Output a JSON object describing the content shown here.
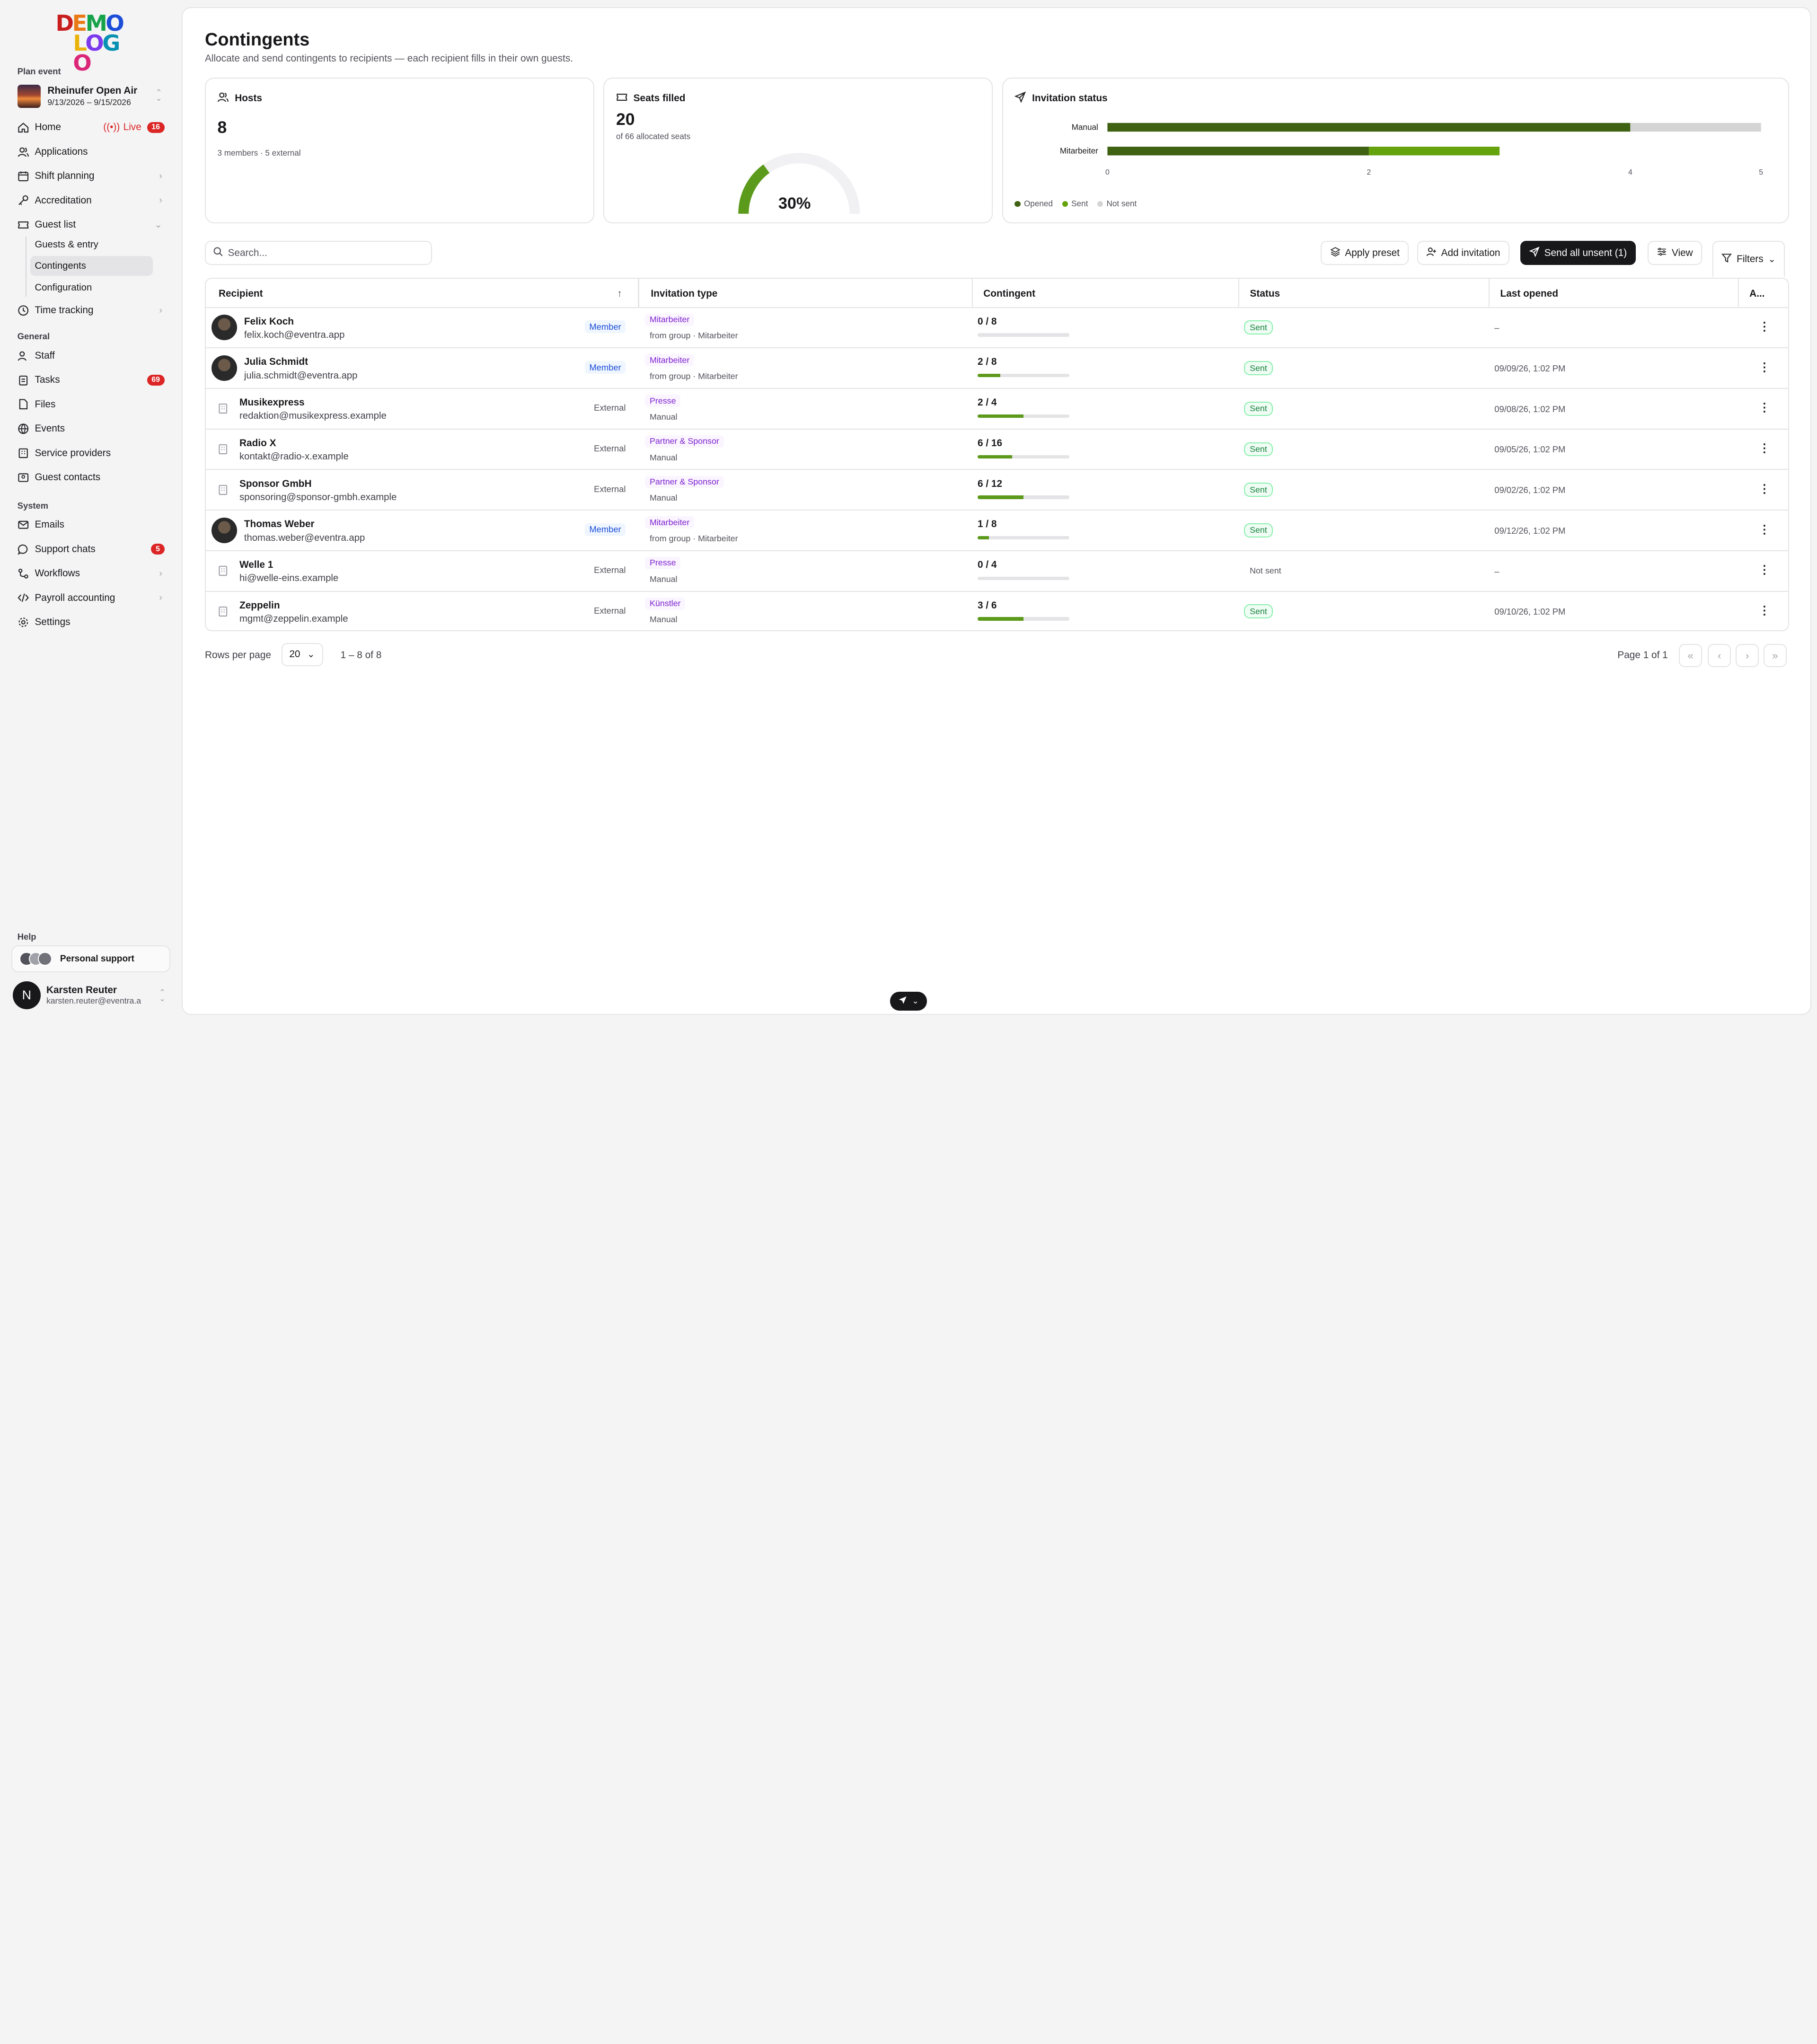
{
  "logo": {
    "line1": "DEMO",
    "line2": "LOGO"
  },
  "sidebar": {
    "plan_label": "Plan event",
    "event_name": "Rheinufer Open Air",
    "event_dates": "9/13/2026 – 9/15/2026",
    "home": "Home",
    "live": "Live",
    "live_count": "16",
    "applications": "Applications",
    "shift_planning": "Shift planning",
    "accreditation": "Accreditation",
    "guest_list": "Guest list",
    "guests_entry": "Guests & entry",
    "contingents": "Contingents",
    "configuration": "Configuration",
    "time_tracking": "Time tracking",
    "general_label": "General",
    "staff": "Staff",
    "tasks": "Tasks",
    "tasks_count": "69",
    "files": "Files",
    "events": "Events",
    "service_providers": "Service providers",
    "guest_contacts": "Guest contacts",
    "system_label": "System",
    "emails": "Emails",
    "support_chats": "Support chats",
    "support_count": "5",
    "workflows": "Workflows",
    "payroll": "Payroll accounting",
    "settings": "Settings",
    "help_label": "Help",
    "personal_support": "Personal support",
    "user_initial": "N",
    "user_name": "Karsten Reuter",
    "user_email": "karsten.reuter@eventra.a"
  },
  "page": {
    "title": "Contingents",
    "subtitle": "Allocate and send contingents to recipients — each recipient fills in their own guests."
  },
  "stats": {
    "hosts_title": "Hosts",
    "hosts_value": "8",
    "hosts_sub": "3 members · 5 external",
    "seats_title": "Seats filled",
    "seats_value": "20",
    "seats_sub": "of 66 allocated seats",
    "seats_pct_label": "30%",
    "seats_fraction": 0.3,
    "inv_title": "Invitation status"
  },
  "chart_data": {
    "type": "bar",
    "orientation": "horizontal",
    "stacked": true,
    "categories": [
      "Manual",
      "Mitarbeiter"
    ],
    "series": [
      {
        "name": "Opened",
        "values": [
          4,
          2
        ],
        "color": "#3f6212"
      },
      {
        "name": "Sent",
        "values": [
          0,
          1
        ],
        "color": "#65a30d"
      },
      {
        "name": "Not sent",
        "values": [
          1,
          0
        ],
        "color": "#d4d4d4"
      }
    ],
    "xticks": [
      "0",
      "2",
      "4",
      "5"
    ],
    "xlim": [
      0,
      5
    ],
    "legend": "bottom-left"
  },
  "toolbar": {
    "search_placeholder": "Search...",
    "apply_preset": "Apply preset",
    "add_invitation": "Add invitation",
    "send_all": "Send all unsent (1)",
    "view": "View",
    "filters": "Filters"
  },
  "table": {
    "headers": {
      "recipient": "Recipient",
      "type": "Invitation type",
      "contingent": "Contingent",
      "status": "Status",
      "last_opened": "Last opened",
      "actions": "A..."
    },
    "rows": [
      {
        "name": "Felix Koch",
        "email": "felix.koch@eventra.app",
        "kind": "Member",
        "type": "Mitarbeiter",
        "source": "from group · Mitarbeiter",
        "contingent": "0 / 8",
        "fill": 0.0,
        "status": "Sent",
        "last_opened": "–"
      },
      {
        "name": "Julia Schmidt",
        "email": "julia.schmidt@eventra.app",
        "kind": "Member",
        "type": "Mitarbeiter",
        "source": "from group · Mitarbeiter",
        "contingent": "2 / 8",
        "fill": 0.25,
        "status": "Sent",
        "last_opened": "09/09/26, 1:02 PM"
      },
      {
        "name": "Musikexpress",
        "email": "redaktion@musikexpress.example",
        "kind": "External",
        "type": "Presse",
        "source": "Manual",
        "contingent": "2 / 4",
        "fill": 0.5,
        "status": "Sent",
        "last_opened": "09/08/26, 1:02 PM"
      },
      {
        "name": "Radio X",
        "email": "kontakt@radio-x.example",
        "kind": "External",
        "type": "Partner & Sponsor",
        "source": "Manual",
        "contingent": "6 / 16",
        "fill": 0.375,
        "status": "Sent",
        "last_opened": "09/05/26, 1:02 PM"
      },
      {
        "name": "Sponsor GmbH",
        "email": "sponsoring@sponsor-gmbh.example",
        "kind": "External",
        "type": "Partner & Sponsor",
        "source": "Manual",
        "contingent": "6 / 12",
        "fill": 0.5,
        "status": "Sent",
        "last_opened": "09/02/26, 1:02 PM"
      },
      {
        "name": "Thomas Weber",
        "email": "thomas.weber@eventra.app",
        "kind": "Member",
        "type": "Mitarbeiter",
        "source": "from group · Mitarbeiter",
        "contingent": "1 / 8",
        "fill": 0.125,
        "status": "Sent",
        "last_opened": "09/12/26, 1:02 PM"
      },
      {
        "name": "Welle 1",
        "email": "hi@welle-eins.example",
        "kind": "External",
        "type": "Presse",
        "source": "Manual",
        "contingent": "0 / 4",
        "fill": 0.0,
        "status": "Not sent",
        "last_opened": "–"
      },
      {
        "name": "Zeppelin",
        "email": "mgmt@zeppelin.example",
        "kind": "External",
        "type": "Künstler",
        "source": "Manual",
        "contingent": "3 / 6",
        "fill": 0.5,
        "status": "Sent",
        "last_opened": "09/10/26, 1:02 PM"
      }
    ]
  },
  "pagination": {
    "rows_label": "Rows per page",
    "rows_value": "20",
    "range": "1 – 8 of 8",
    "page_info": "Page 1 of 1"
  }
}
